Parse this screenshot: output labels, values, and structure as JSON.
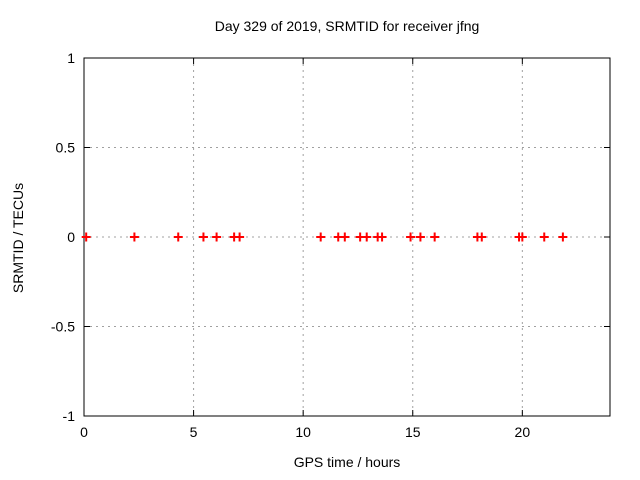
{
  "title": "Day 329 of 2019, SRMTID for receiver jfng",
  "chart_data": {
    "type": "scatter",
    "title": "Day 329 of 2019, SRMTID for receiver jfng",
    "xlabel": "GPS time / hours",
    "ylabel": "SRMTID / TECUs",
    "xlim": [
      0,
      24
    ],
    "ylim": [
      -1,
      1
    ],
    "xticks": [
      0,
      5,
      10,
      15,
      20
    ],
    "yticks": [
      -1,
      -0.5,
      0,
      0.5,
      1
    ],
    "grid": true,
    "legend": null,
    "marker": "plus",
    "marker_color": "#ff0000",
    "grid_color": "#a0a0a0",
    "axis_color": "#000000",
    "series": [
      {
        "name": "SRMTID",
        "x": [
          0.1,
          2.3,
          4.3,
          5.45,
          6.05,
          6.85,
          7.1,
          10.8,
          11.6,
          11.9,
          12.6,
          12.9,
          13.4,
          13.6,
          14.9,
          15.35,
          16.0,
          17.95,
          18.15,
          19.85,
          20.0,
          21.0,
          21.85
        ],
        "y": [
          0,
          0,
          0,
          0,
          0,
          0,
          0,
          0,
          0,
          0,
          0,
          0,
          0,
          0,
          0,
          0,
          0,
          0,
          0,
          0,
          0,
          0,
          0
        ]
      }
    ]
  }
}
